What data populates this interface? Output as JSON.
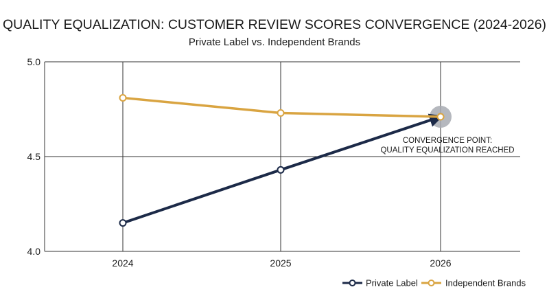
{
  "chart_data": {
    "type": "line",
    "title": "QUALITY EQUALIZATION: CUSTOMER REVIEW SCORES CONVERGENCE (2024-2026)",
    "subtitle": "Private Label vs. Independent Brands",
    "xlabel": "",
    "ylabel": "",
    "categories": [
      "2024",
      "2025",
      "2026"
    ],
    "ylim": [
      4.0,
      5.0
    ],
    "yticks": [
      "4.0",
      "4.5",
      "5.0"
    ],
    "grid": true,
    "legend_position": "bottom-right",
    "series": [
      {
        "name": "Private Label",
        "values": [
          4.15,
          4.43,
          4.71
        ],
        "color": "#1c2a48"
      },
      {
        "name": "Independent Brands",
        "values": [
          4.81,
          4.73,
          4.71
        ],
        "color": "#d9a441"
      }
    ],
    "annotation": {
      "lines": [
        "CONVERGENCE POINT:",
        "QUALITY EQUALIZATION REACHED"
      ],
      "x": "2026",
      "y": 4.71,
      "highlight_color": "#a8acb3"
    }
  }
}
